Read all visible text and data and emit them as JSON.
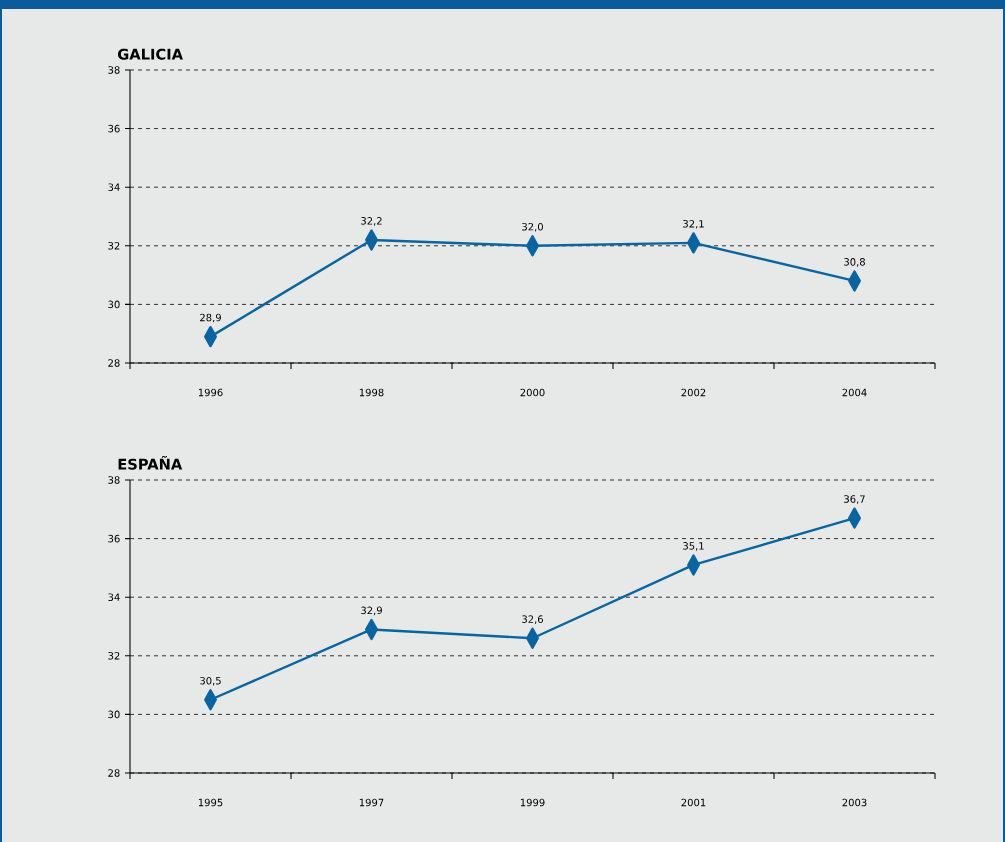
{
  "chart_data": [
    {
      "type": "line",
      "title": "GALICIA",
      "categories": [
        "1996",
        "1998",
        "2000",
        "2002",
        "2004"
      ],
      "series": [
        {
          "color": "#0a64a0",
          "values": [
            28.9,
            32.2,
            32.0,
            32.1,
            30.8
          ],
          "value_labels": [
            "28,9",
            "32,2",
            "32,0",
            "32,1",
            "30,8"
          ]
        }
      ],
      "ylim": [
        28,
        38
      ],
      "yticks": [
        28,
        30,
        32,
        34,
        36,
        38
      ],
      "grid": "y",
      "marker": "diamond"
    },
    {
      "type": "line",
      "title": "ESPAÑA",
      "categories": [
        "1995",
        "1997",
        "1999",
        "2001",
        "2003"
      ],
      "series": [
        {
          "color": "#0a64a0",
          "values": [
            30.5,
            32.9,
            32.6,
            35.1,
            36.7
          ],
          "value_labels": [
            "30,5",
            "32,9",
            "32,6",
            "35,1",
            "36,7"
          ]
        }
      ],
      "ylim": [
        28,
        38
      ],
      "yticks": [
        28,
        30,
        32,
        34,
        36,
        38
      ],
      "grid": "y",
      "marker": "diamond"
    }
  ]
}
